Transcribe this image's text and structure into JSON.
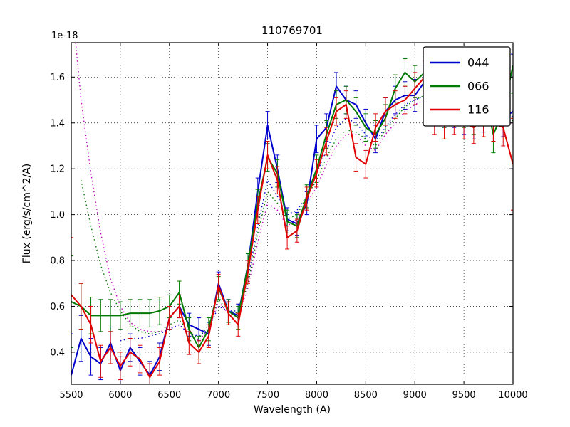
{
  "figure": {
    "title": "110769701"
  },
  "chart_data": {
    "type": "line",
    "title": "110769701",
    "xlabel": "Wavelength (A)",
    "ylabel": "Flux (erg/s/cm^2/A)",
    "y_offset_label": "1e-18",
    "xlim": [
      5500,
      10000
    ],
    "ylim": [
      0.26,
      1.75
    ],
    "xticks": [
      5500,
      6000,
      6500,
      7000,
      7500,
      8000,
      8500,
      9000,
      9500,
      10000
    ],
    "yticks": [
      0.4,
      0.6,
      0.8,
      1.0,
      1.2,
      1.4,
      1.6
    ],
    "grid": true,
    "legend_position": "upper right",
    "legend_entries": [
      "044",
      "066",
      "116"
    ],
    "colors": {
      "blue": "#0000cc",
      "green": "#007a00",
      "red": "#e00000",
      "magenta": "#bf00bf"
    },
    "x": [
      5500,
      5600,
      5700,
      5800,
      5900,
      6000,
      6100,
      6200,
      6300,
      6400,
      6500,
      6600,
      6700,
      6800,
      6900,
      7000,
      7100,
      7200,
      7300,
      7400,
      7500,
      7600,
      7700,
      7800,
      7900,
      8000,
      8100,
      8200,
      8300,
      8400,
      8500,
      8600,
      8700,
      8800,
      8900,
      9000,
      9100,
      9200,
      9300,
      9400,
      9500,
      9600,
      9700,
      9800,
      9900,
      10000
    ],
    "series": [
      {
        "name": "model-magenta-dotted",
        "color": "#bf00bf",
        "style": "dotted",
        "width": 1.4,
        "legend": false,
        "y": [
          1.95,
          1.5,
          1.18,
          0.92,
          0.72,
          0.6,
          0.53,
          0.5,
          0.49,
          0.49,
          0.5,
          0.52,
          0.48,
          0.45,
          0.5,
          0.62,
          0.57,
          0.56,
          0.68,
          0.88,
          1.05,
          1.02,
          0.95,
          0.98,
          1.05,
          1.12,
          1.22,
          1.3,
          1.35,
          1.35,
          1.3,
          1.28,
          1.35,
          1.4,
          1.45,
          1.48,
          1.5,
          1.45,
          1.42,
          1.43,
          1.42,
          1.4,
          1.42,
          1.4,
          1.4,
          1.4
        ],
        "yerr": null
      },
      {
        "name": "model-green-dotted",
        "color": "#007a00",
        "style": "dotted",
        "width": 1.4,
        "legend": false,
        "y": [
          null,
          1.15,
          0.95,
          0.78,
          0.66,
          0.58,
          0.52,
          0.49,
          0.48,
          0.49,
          0.52,
          0.54,
          0.49,
          0.46,
          0.52,
          0.63,
          0.58,
          0.57,
          0.7,
          0.92,
          1.1,
          1.05,
          0.98,
          1.0,
          1.08,
          1.15,
          1.25,
          1.33,
          1.37,
          1.36,
          1.33,
          1.3,
          1.37,
          1.42,
          1.47,
          1.5,
          1.52,
          1.46,
          1.43,
          1.44,
          1.43,
          1.41,
          1.43,
          1.41,
          1.41,
          1.41
        ],
        "yerr": null
      },
      {
        "name": "model-blue-dotted",
        "color": "#0000cc",
        "style": "dotted",
        "width": 1.4,
        "legend": false,
        "y": [
          null,
          null,
          null,
          null,
          null,
          0.45,
          0.46,
          0.46,
          0.47,
          0.48,
          0.5,
          0.52,
          0.48,
          0.47,
          0.5,
          0.6,
          0.58,
          0.58,
          0.72,
          0.95,
          1.15,
          1.08,
          1.0,
          1.02,
          1.08,
          1.18,
          1.28,
          1.38,
          1.42,
          1.4,
          1.35,
          1.32,
          1.38,
          1.44,
          1.48,
          1.5,
          1.52,
          1.47,
          1.44,
          1.44,
          1.43,
          1.41,
          1.43,
          1.41,
          1.42,
          1.43
        ],
        "yerr": null
      },
      {
        "name": "044",
        "color": "#0000cc",
        "style": "solid",
        "width": 2,
        "legend": true,
        "y": [
          0.3,
          0.46,
          0.38,
          0.35,
          0.44,
          0.32,
          0.42,
          0.36,
          0.3,
          0.38,
          0.55,
          0.6,
          0.52,
          0.5,
          0.48,
          0.7,
          0.58,
          0.56,
          0.78,
          1.1,
          1.39,
          1.2,
          0.98,
          0.96,
          1.05,
          1.33,
          1.38,
          1.56,
          1.5,
          1.48,
          1.4,
          1.33,
          1.45,
          1.5,
          1.52,
          1.52,
          1.58,
          1.48,
          1.45,
          1.45,
          1.42,
          1.4,
          1.44,
          1.4,
          1.42,
          1.45
        ],
        "yerr": [
          0.18,
          0.1,
          0.08,
          0.07,
          0.07,
          0.06,
          0.06,
          0.06,
          0.06,
          0.06,
          0.05,
          0.05,
          0.05,
          0.05,
          0.05,
          0.05,
          0.05,
          0.05,
          0.05,
          0.06,
          0.06,
          0.06,
          0.05,
          0.05,
          0.05,
          0.06,
          0.06,
          0.06,
          0.06,
          0.06,
          0.06,
          0.06,
          0.06,
          0.06,
          0.06,
          0.07,
          0.07,
          0.07,
          0.07,
          0.07,
          0.07,
          0.07,
          0.08,
          0.08,
          0.08,
          0.25
        ]
      },
      {
        "name": "066",
        "color": "#007a00",
        "style": "solid",
        "width": 2,
        "legend": true,
        "y": [
          0.62,
          0.6,
          0.56,
          0.56,
          0.56,
          0.56,
          0.57,
          0.57,
          0.57,
          0.58,
          0.6,
          0.66,
          0.5,
          0.42,
          0.5,
          0.68,
          0.58,
          0.55,
          0.78,
          1.05,
          1.25,
          1.18,
          0.97,
          0.95,
          1.08,
          1.2,
          1.35,
          1.48,
          1.5,
          1.45,
          1.38,
          1.35,
          1.42,
          1.55,
          1.62,
          1.58,
          1.62,
          1.5,
          1.45,
          1.48,
          1.45,
          1.42,
          1.55,
          1.35,
          1.45,
          1.65
        ],
        "yerr": [
          0.2,
          0.1,
          0.08,
          0.07,
          0.07,
          0.06,
          0.06,
          0.06,
          0.06,
          0.06,
          0.05,
          0.05,
          0.05,
          0.05,
          0.05,
          0.05,
          0.05,
          0.05,
          0.05,
          0.06,
          0.06,
          0.06,
          0.05,
          0.05,
          0.05,
          0.06,
          0.06,
          0.06,
          0.06,
          0.06,
          0.06,
          0.06,
          0.06,
          0.06,
          0.06,
          0.07,
          0.07,
          0.07,
          0.07,
          0.07,
          0.07,
          0.07,
          0.1,
          0.08,
          0.08,
          0.12
        ]
      },
      {
        "name": "116",
        "color": "#e00000",
        "style": "solid",
        "width": 2,
        "legend": true,
        "y": [
          0.65,
          0.6,
          0.52,
          0.36,
          0.42,
          0.34,
          0.4,
          0.37,
          0.29,
          0.36,
          0.55,
          0.6,
          0.44,
          0.4,
          0.47,
          0.69,
          0.57,
          0.52,
          0.75,
          1.02,
          1.26,
          1.15,
          0.9,
          0.93,
          1.07,
          1.18,
          1.32,
          1.45,
          1.48,
          1.25,
          1.22,
          1.38,
          1.45,
          1.48,
          1.5,
          1.55,
          1.6,
          1.42,
          1.4,
          1.42,
          1.4,
          1.38,
          1.42,
          1.4,
          1.38,
          1.22
        ],
        "yerr": [
          0.25,
          0.1,
          0.08,
          0.07,
          0.07,
          0.06,
          0.06,
          0.06,
          0.06,
          0.06,
          0.05,
          0.05,
          0.05,
          0.05,
          0.05,
          0.05,
          0.05,
          0.05,
          0.05,
          0.06,
          0.06,
          0.06,
          0.05,
          0.05,
          0.05,
          0.06,
          0.06,
          0.06,
          0.06,
          0.06,
          0.06,
          0.06,
          0.06,
          0.06,
          0.06,
          0.07,
          0.07,
          0.07,
          0.07,
          0.07,
          0.07,
          0.07,
          0.08,
          0.08,
          0.08,
          0.2
        ]
      }
    ]
  }
}
